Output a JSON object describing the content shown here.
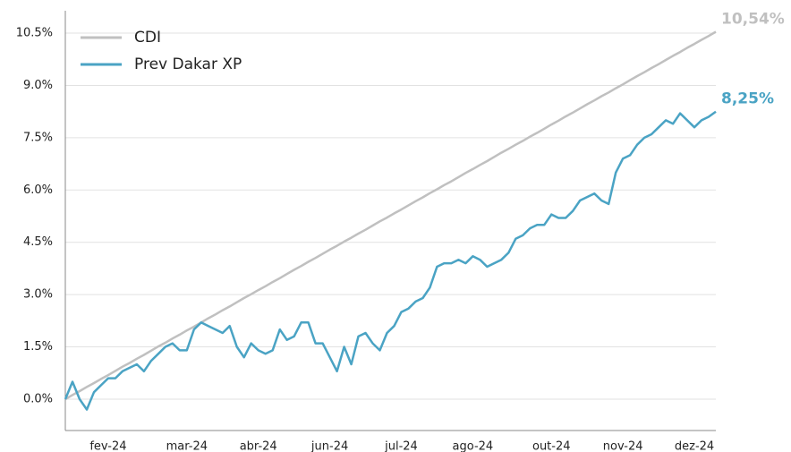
{
  "chart_data": {
    "type": "line",
    "categories": [
      null,
      null,
      null,
      null,
      null,
      null,
      "fev-24",
      null,
      null,
      null,
      null,
      null,
      null,
      null,
      null,
      null,
      null,
      "mar-24",
      null,
      null,
      null,
      null,
      null,
      null,
      null,
      null,
      null,
      "abr-24",
      null,
      null,
      null,
      null,
      null,
      null,
      null,
      null,
      null,
      "jun-24",
      null,
      null,
      null,
      null,
      null,
      null,
      null,
      null,
      null,
      "jul-24",
      null,
      null,
      null,
      null,
      null,
      null,
      null,
      null,
      null,
      "ago-24",
      null,
      null,
      null,
      null,
      null,
      null,
      null,
      null,
      null,
      null,
      "out-24",
      null,
      null,
      null,
      null,
      null,
      null,
      null,
      null,
      null,
      "nov-24",
      null,
      null,
      null,
      null,
      null,
      null,
      null,
      null,
      null,
      "dez-24",
      null,
      null,
      null
    ],
    "series": [
      {
        "name": "CDI",
        "color": "#c0c0c0",
        "values": [
          0,
          0.12,
          0.23,
          0.35,
          0.46,
          0.58,
          0.69,
          0.81,
          0.93,
          1.04,
          1.16,
          1.27,
          1.39,
          1.51,
          1.62,
          1.74,
          1.85,
          1.97,
          2.08,
          2.2,
          2.32,
          2.43,
          2.55,
          2.66,
          2.78,
          2.9,
          3.01,
          3.13,
          3.24,
          3.36,
          3.47,
          3.59,
          3.71,
          3.82,
          3.94,
          4.05,
          4.17,
          4.29,
          4.4,
          4.52,
          4.63,
          4.75,
          4.86,
          4.98,
          5.1,
          5.21,
          5.33,
          5.44,
          5.56,
          5.68,
          5.79,
          5.91,
          6.02,
          6.14,
          6.25,
          6.37,
          6.49,
          6.6,
          6.72,
          6.83,
          6.95,
          7.07,
          7.18,
          7.3,
          7.41,
          7.53,
          7.64,
          7.76,
          7.88,
          7.99,
          8.11,
          8.22,
          8.34,
          8.46,
          8.57,
          8.69,
          8.8,
          8.92,
          9.03,
          9.15,
          9.27,
          9.38,
          9.5,
          9.61,
          9.73,
          9.85,
          9.96,
          10.08,
          10.19,
          10.31,
          10.42,
          10.54
        ],
        "value_labels": [
          null,
          null,
          null,
          null,
          null,
          null,
          null,
          null,
          null,
          null,
          null,
          null,
          null,
          null,
          null,
          null,
          null,
          null,
          null,
          null,
          null,
          null,
          null,
          null,
          null,
          null,
          null,
          null,
          null,
          null,
          null,
          null,
          null,
          null,
          null,
          null,
          null,
          null,
          null,
          null,
          null,
          null,
          null,
          null,
          null,
          null,
          null,
          null,
          null,
          null,
          null,
          null,
          null,
          null,
          null,
          null,
          null,
          null,
          null,
          null,
          null,
          null,
          null,
          null,
          null,
          null,
          null,
          null,
          null,
          null,
          null,
          null,
          null,
          null,
          null,
          null,
          null,
          null,
          null,
          null,
          null,
          null,
          null,
          null,
          null,
          null,
          null,
          null,
          null,
          null,
          null,
          "10,54%"
        ]
      },
      {
        "name": "Prev Dakar XP",
        "color": "#4aa3c4",
        "values": [
          0.0,
          0.5,
          0.0,
          -0.3,
          0.2,
          0.4,
          0.6,
          0.6,
          0.8,
          0.9,
          1.0,
          0.8,
          1.1,
          1.3,
          1.5,
          1.6,
          1.4,
          1.4,
          2.0,
          2.2,
          2.1,
          2.0,
          1.9,
          2.1,
          1.5,
          1.2,
          1.6,
          1.4,
          1.3,
          1.4,
          2.0,
          1.7,
          1.8,
          2.2,
          2.2,
          1.6,
          1.6,
          1.2,
          0.8,
          1.5,
          1.0,
          1.8,
          1.9,
          1.6,
          1.4,
          1.9,
          2.1,
          2.5,
          2.6,
          2.8,
          2.9,
          3.2,
          3.8,
          3.9,
          3.9,
          4.0,
          3.9,
          4.1,
          4.0,
          3.8,
          3.9,
          4.0,
          4.2,
          4.6,
          4.7,
          4.9,
          5.0,
          5.0,
          5.3,
          5.2,
          5.2,
          5.4,
          5.7,
          5.8,
          5.9,
          5.7,
          5.6,
          6.5,
          6.9,
          7.0,
          7.3,
          7.5,
          7.6,
          7.8,
          8.0,
          7.9,
          8.2,
          8.0,
          7.8,
          8.0,
          8.1,
          8.25
        ],
        "value_labels": [
          null,
          null,
          null,
          null,
          null,
          null,
          null,
          null,
          null,
          null,
          null,
          null,
          null,
          null,
          null,
          null,
          null,
          null,
          null,
          null,
          null,
          null,
          null,
          null,
          null,
          null,
          null,
          null,
          null,
          null,
          null,
          null,
          null,
          null,
          null,
          null,
          null,
          null,
          null,
          null,
          null,
          null,
          null,
          null,
          null,
          null,
          null,
          null,
          null,
          null,
          null,
          null,
          null,
          null,
          null,
          null,
          null,
          null,
          null,
          null,
          null,
          null,
          null,
          null,
          null,
          null,
          null,
          null,
          null,
          null,
          null,
          null,
          null,
          null,
          null,
          null,
          null,
          null,
          null,
          null,
          null,
          null,
          null,
          null,
          null,
          null,
          null,
          null,
          null,
          null,
          null,
          "8,25%"
        ]
      }
    ],
    "ylim": [
      -0.9,
      11.2
    ],
    "yticks": [
      {
        "value": 0,
        "label": "0.0%"
      },
      {
        "value": 1.5,
        "label": "1.5%"
      },
      {
        "value": 3,
        "label": "3.0%"
      },
      {
        "value": 4.5,
        "label": "4.5%"
      },
      {
        "value": 6,
        "label": "6.0%"
      },
      {
        "value": 7.5,
        "label": "7.5%"
      },
      {
        "value": 9,
        "label": "9.0%"
      },
      {
        "value": 10.5,
        "label": "10.5%"
      }
    ],
    "grid": true,
    "legend": "upper left"
  }
}
